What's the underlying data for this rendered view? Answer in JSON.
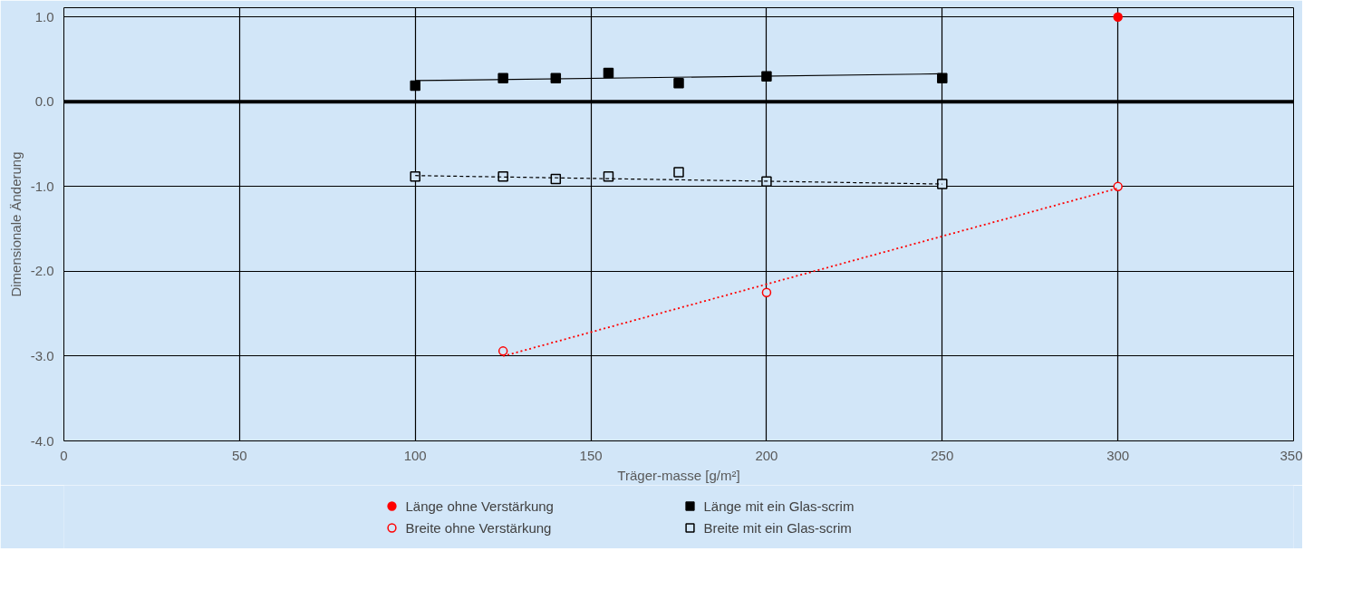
{
  "chart_data": {
    "type": "scatter",
    "xlabel": "Träger-masse [g/m²]",
    "ylabel": "Dimensionale Änderung",
    "xlim": [
      0,
      350
    ],
    "xticks": [
      0,
      50,
      100,
      150,
      200,
      250,
      300,
      350
    ],
    "ylim": [
      -4.0,
      1.11
    ],
    "yticks": [
      {
        "value": -4,
        "label": "-4.0"
      },
      {
        "value": -3,
        "label": "-3.0"
      },
      {
        "value": -2,
        "label": "-2.0"
      },
      {
        "value": -1,
        "label": "-1.0"
      },
      {
        "value": 0,
        "label": "0.0"
      },
      {
        "value": 1,
        "label": "1.0"
      }
    ],
    "grid": true,
    "legend": "bottom",
    "ref_lines": [
      {
        "axis": "y",
        "value": 0,
        "label": null,
        "color": "#000000"
      }
    ],
    "series": [
      {
        "name": "Länge ohne Verstärkung",
        "color": "#ff0000",
        "marker": "circle",
        "x": [
          300
        ],
        "values": [
          1.0
        ]
      },
      {
        "name": "Länge mit ein Glas-scrim",
        "color": "#000000",
        "marker": "square",
        "x": [
          100,
          125,
          140,
          155,
          175,
          200,
          250
        ],
        "values": [
          0.19,
          0.28,
          0.28,
          0.34,
          0.22,
          0.3,
          0.28
        ]
      },
      {
        "name": "Breite ohne Verstärkung",
        "color": "#ff0000",
        "marker": "circle_open",
        "x": [
          125,
          200,
          300
        ],
        "values": [
          -2.94,
          -2.25,
          -1.0
        ]
      },
      {
        "name": "Breite mit ein Glas-scrim",
        "color": "#000000",
        "marker": "square_open",
        "x": [
          100,
          125,
          140,
          155,
          175,
          200,
          250
        ],
        "values": [
          -0.88,
          -0.88,
          -0.91,
          -0.88,
          -0.83,
          -0.94,
          -0.97
        ]
      },
      {
        "type": "line",
        "color": "#000000",
        "line_style": "solid",
        "x": [
          100,
          250
        ],
        "values": [
          0.25,
          0.33
        ]
      },
      {
        "type": "line",
        "color": "#000000",
        "line_style": "dashed",
        "x": [
          100,
          250
        ],
        "values": [
          -0.87,
          -0.97
        ]
      },
      {
        "type": "line",
        "color": "#ff0000",
        "line_style": "dotted",
        "x": [
          125,
          300
        ],
        "values": [
          -3.0,
          -1.02
        ]
      }
    ]
  }
}
